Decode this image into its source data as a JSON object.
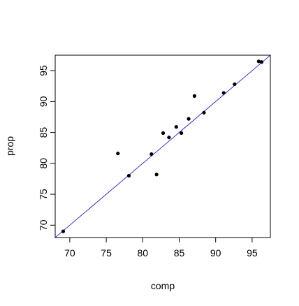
{
  "chart_data": {
    "type": "scatter",
    "xlabel": "comp",
    "ylabel": "prop",
    "xlim": [
      68,
      97.5
    ],
    "ylim": [
      68,
      97.5
    ],
    "x_ticks": [
      70,
      75,
      80,
      85,
      90,
      95
    ],
    "y_ticks": [
      70,
      75,
      80,
      85,
      90,
      95
    ],
    "x_tick_labels": [
      "70",
      "75",
      "80",
      "85",
      "90",
      "95"
    ],
    "y_tick_labels": [
      "70",
      "75",
      "80",
      "85",
      "90",
      "95"
    ],
    "grid": false,
    "points": [
      {
        "x": 69.1,
        "y": 69.0
      },
      {
        "x": 76.6,
        "y": 81.6
      },
      {
        "x": 78.1,
        "y": 78.0
      },
      {
        "x": 81.2,
        "y": 81.5
      },
      {
        "x": 81.9,
        "y": 78.2
      },
      {
        "x": 82.8,
        "y": 84.9
      },
      {
        "x": 83.6,
        "y": 84.2
      },
      {
        "x": 84.6,
        "y": 85.9
      },
      {
        "x": 85.3,
        "y": 84.9
      },
      {
        "x": 86.3,
        "y": 87.2
      },
      {
        "x": 87.1,
        "y": 90.9
      },
      {
        "x": 88.4,
        "y": 88.2
      },
      {
        "x": 91.1,
        "y": 91.4
      },
      {
        "x": 92.6,
        "y": 92.8
      },
      {
        "x": 95.9,
        "y": 96.5
      },
      {
        "x": 96.3,
        "y": 96.4
      }
    ],
    "reference_line": {
      "intercept": 0,
      "slope": 1,
      "color": "#0000ff"
    },
    "point_color": "#000000"
  }
}
